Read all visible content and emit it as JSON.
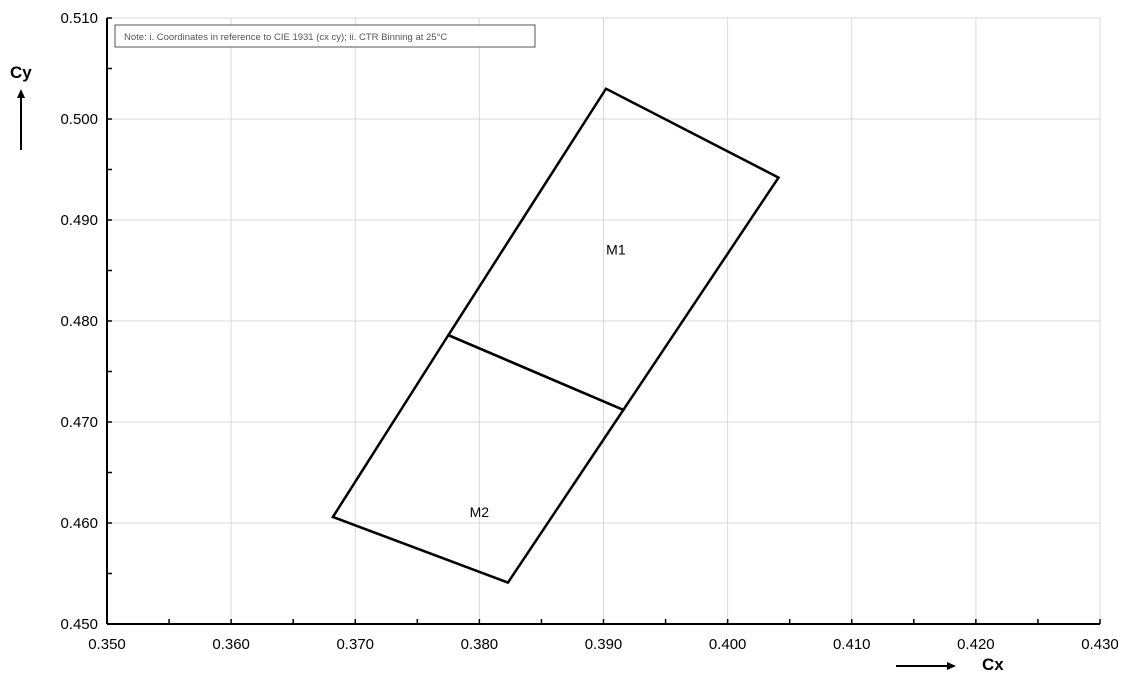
{
  "chart_data": {
    "type": "scatter",
    "x_axis": {
      "label": "Cx",
      "range": [
        0.35,
        0.43
      ],
      "ticks": [
        "0.350",
        "0.360",
        "0.370",
        "0.380",
        "0.390",
        "0.400",
        "0.410",
        "0.420",
        "0.430"
      ]
    },
    "y_axis": {
      "label": "Cy",
      "range": [
        0.45,
        0.51
      ],
      "ticks": [
        "0.450",
        "0.460",
        "0.470",
        "0.480",
        "0.490",
        "0.500",
        "0.510"
      ]
    },
    "grid": true,
    "note": "Note: i. Coordinates in reference to CIE 1931 (cx cy); ii. CTR Binning at 25°C",
    "regions": [
      {
        "name": "M1",
        "points": [
          [
            0.3775,
            0.4786
          ],
          [
            0.3902,
            0.503
          ],
          [
            0.4041,
            0.4942
          ],
          [
            0.3916,
            0.4712
          ]
        ]
      },
      {
        "name": "M2",
        "points": [
          [
            0.3682,
            0.4606
          ],
          [
            0.3775,
            0.4786
          ],
          [
            0.3916,
            0.4712
          ],
          [
            0.3823,
            0.4541
          ]
        ]
      }
    ],
    "region_label_positions": [
      {
        "name": "M1",
        "x": 0.391,
        "y": 0.4866
      },
      {
        "name": "M2",
        "x": 0.38,
        "y": 0.4606
      }
    ]
  }
}
